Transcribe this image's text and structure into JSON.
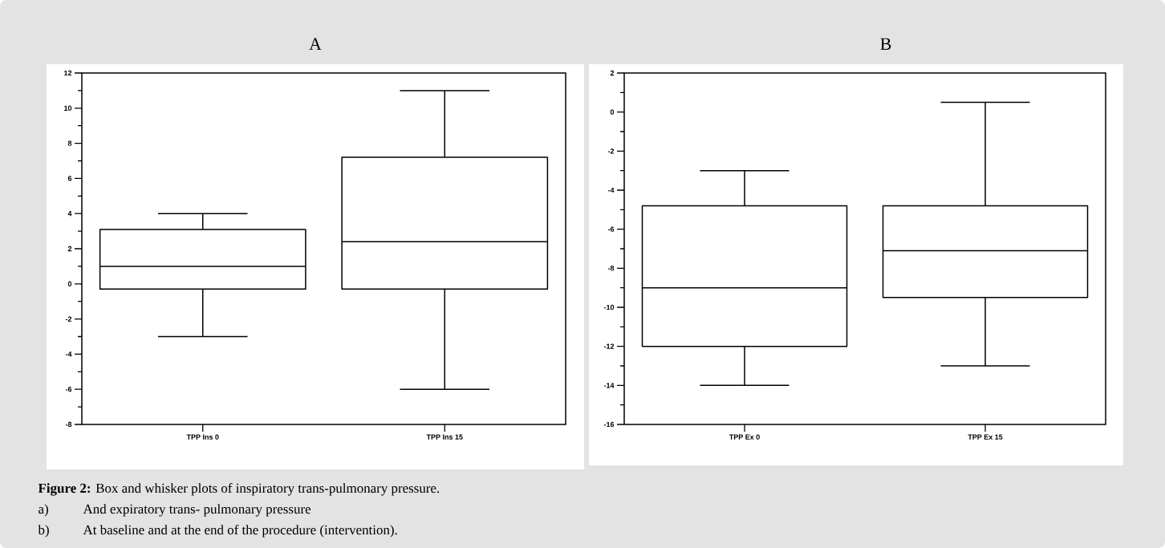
{
  "chart_data": [
    {
      "type": "box",
      "title": "A",
      "categories": [
        "TPP Ins 0",
        "TPP Ins 15"
      ],
      "color": "#000000",
      "ylim": [
        -8,
        12
      ],
      "yticks": [
        -8,
        -6,
        -4,
        -2,
        0,
        2,
        4,
        6,
        8,
        10,
        12
      ],
      "boxes": [
        {
          "low": -3,
          "q1": -0.3,
          "median": 1,
          "q3": 3.1,
          "high": 4
        },
        {
          "low": -6,
          "q1": -0.3,
          "median": 2.4,
          "q3": 7.2,
          "high": 11
        }
      ],
      "annotations": [
        "**Figure 2:** Box and whisker plots of inspiratory trans-pulmonary pressure.",
        "a)",
        "And expiratory trans- pulmonary pressure",
        "b)",
        "At baseline and at the end of the procedure (intervention)."
      ]
    },
    {
      "type": "box",
      "title": "B",
      "categories": [
        "TPP Ex 0",
        "TPP Ex 15"
      ],
      "color": "#000000",
      "ylim": [
        -16,
        2
      ],
      "yticks": [
        -16,
        -14,
        -12,
        -10,
        -8,
        -6,
        -4,
        -2,
        0,
        2
      ],
      "boxes": [
        {
          "low": -14,
          "q1": -12,
          "median": -9,
          "q3": -4.8,
          "high": -3
        },
        {
          "low": -13,
          "q1": -9.5,
          "median": -7.1,
          "q3": -4.8,
          "high": 0.5
        }
      ]
    }
  ]
}
